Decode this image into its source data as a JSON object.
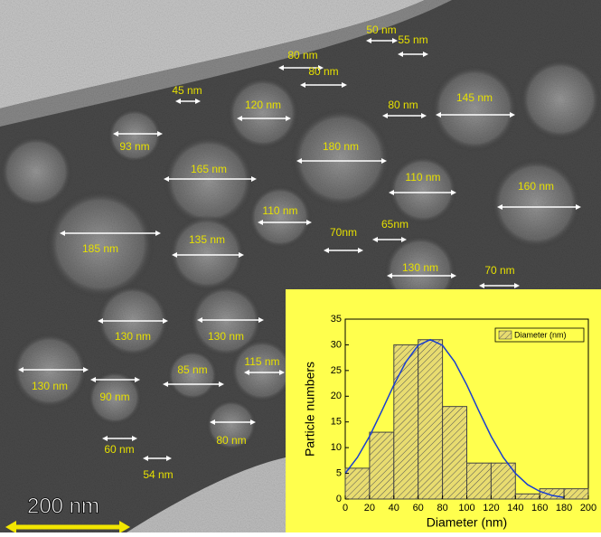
{
  "annotations": [
    "50 nm",
    "55 nm",
    "80 nm",
    "80 nm",
    "45 nm",
    "120 nm",
    "80 nm",
    "145 nm",
    "93 nm",
    "180 nm",
    "165 nm",
    "110 nm",
    "160 nm",
    "110 nm",
    "65nm",
    "70nm",
    "185 nm",
    "135 nm",
    "130 nm",
    "70 nm",
    "130 nm",
    "130 nm",
    "85 nm",
    "115 nm",
    "130 nm",
    "90 nm",
    "80 nm",
    "60 nm",
    "54 nm"
  ],
  "scale_bar": "200 nm",
  "chart_data": {
    "type": "histogram",
    "bins": [
      0,
      20,
      40,
      60,
      80,
      100,
      120,
      140,
      160,
      180,
      200
    ],
    "series": [
      {
        "name": "Diameter (nm)",
        "color": "#e8dc70",
        "values": [
          6,
          13,
          30,
          31,
          18,
          7,
          7,
          1,
          2,
          2
        ]
      }
    ],
    "fit": {
      "color": "#1a3fd0",
      "x": [
        0,
        10,
        20,
        30,
        40,
        50,
        60,
        70,
        80,
        90,
        100,
        110,
        120,
        130,
        140,
        150,
        160,
        170,
        180
      ],
      "values": [
        5.0,
        8.1,
        12.2,
        17.1,
        22.2,
        26.7,
        29.9,
        31,
        29.9,
        26.7,
        22.2,
        17.1,
        12.2,
        8.1,
        5.0,
        2.8,
        1.5,
        0.7,
        0.3
      ]
    },
    "xlabel": "Diameter (nm)",
    "ylabel": "Particle numbers",
    "xlim": [
      0,
      200
    ],
    "xticks": [
      0,
      20,
      40,
      60,
      80,
      100,
      120,
      140,
      160,
      180,
      200
    ],
    "ylim": [
      0,
      35
    ],
    "yticks": [
      0,
      5,
      10,
      15,
      20,
      25,
      30,
      35
    ],
    "legend": "upper right"
  }
}
